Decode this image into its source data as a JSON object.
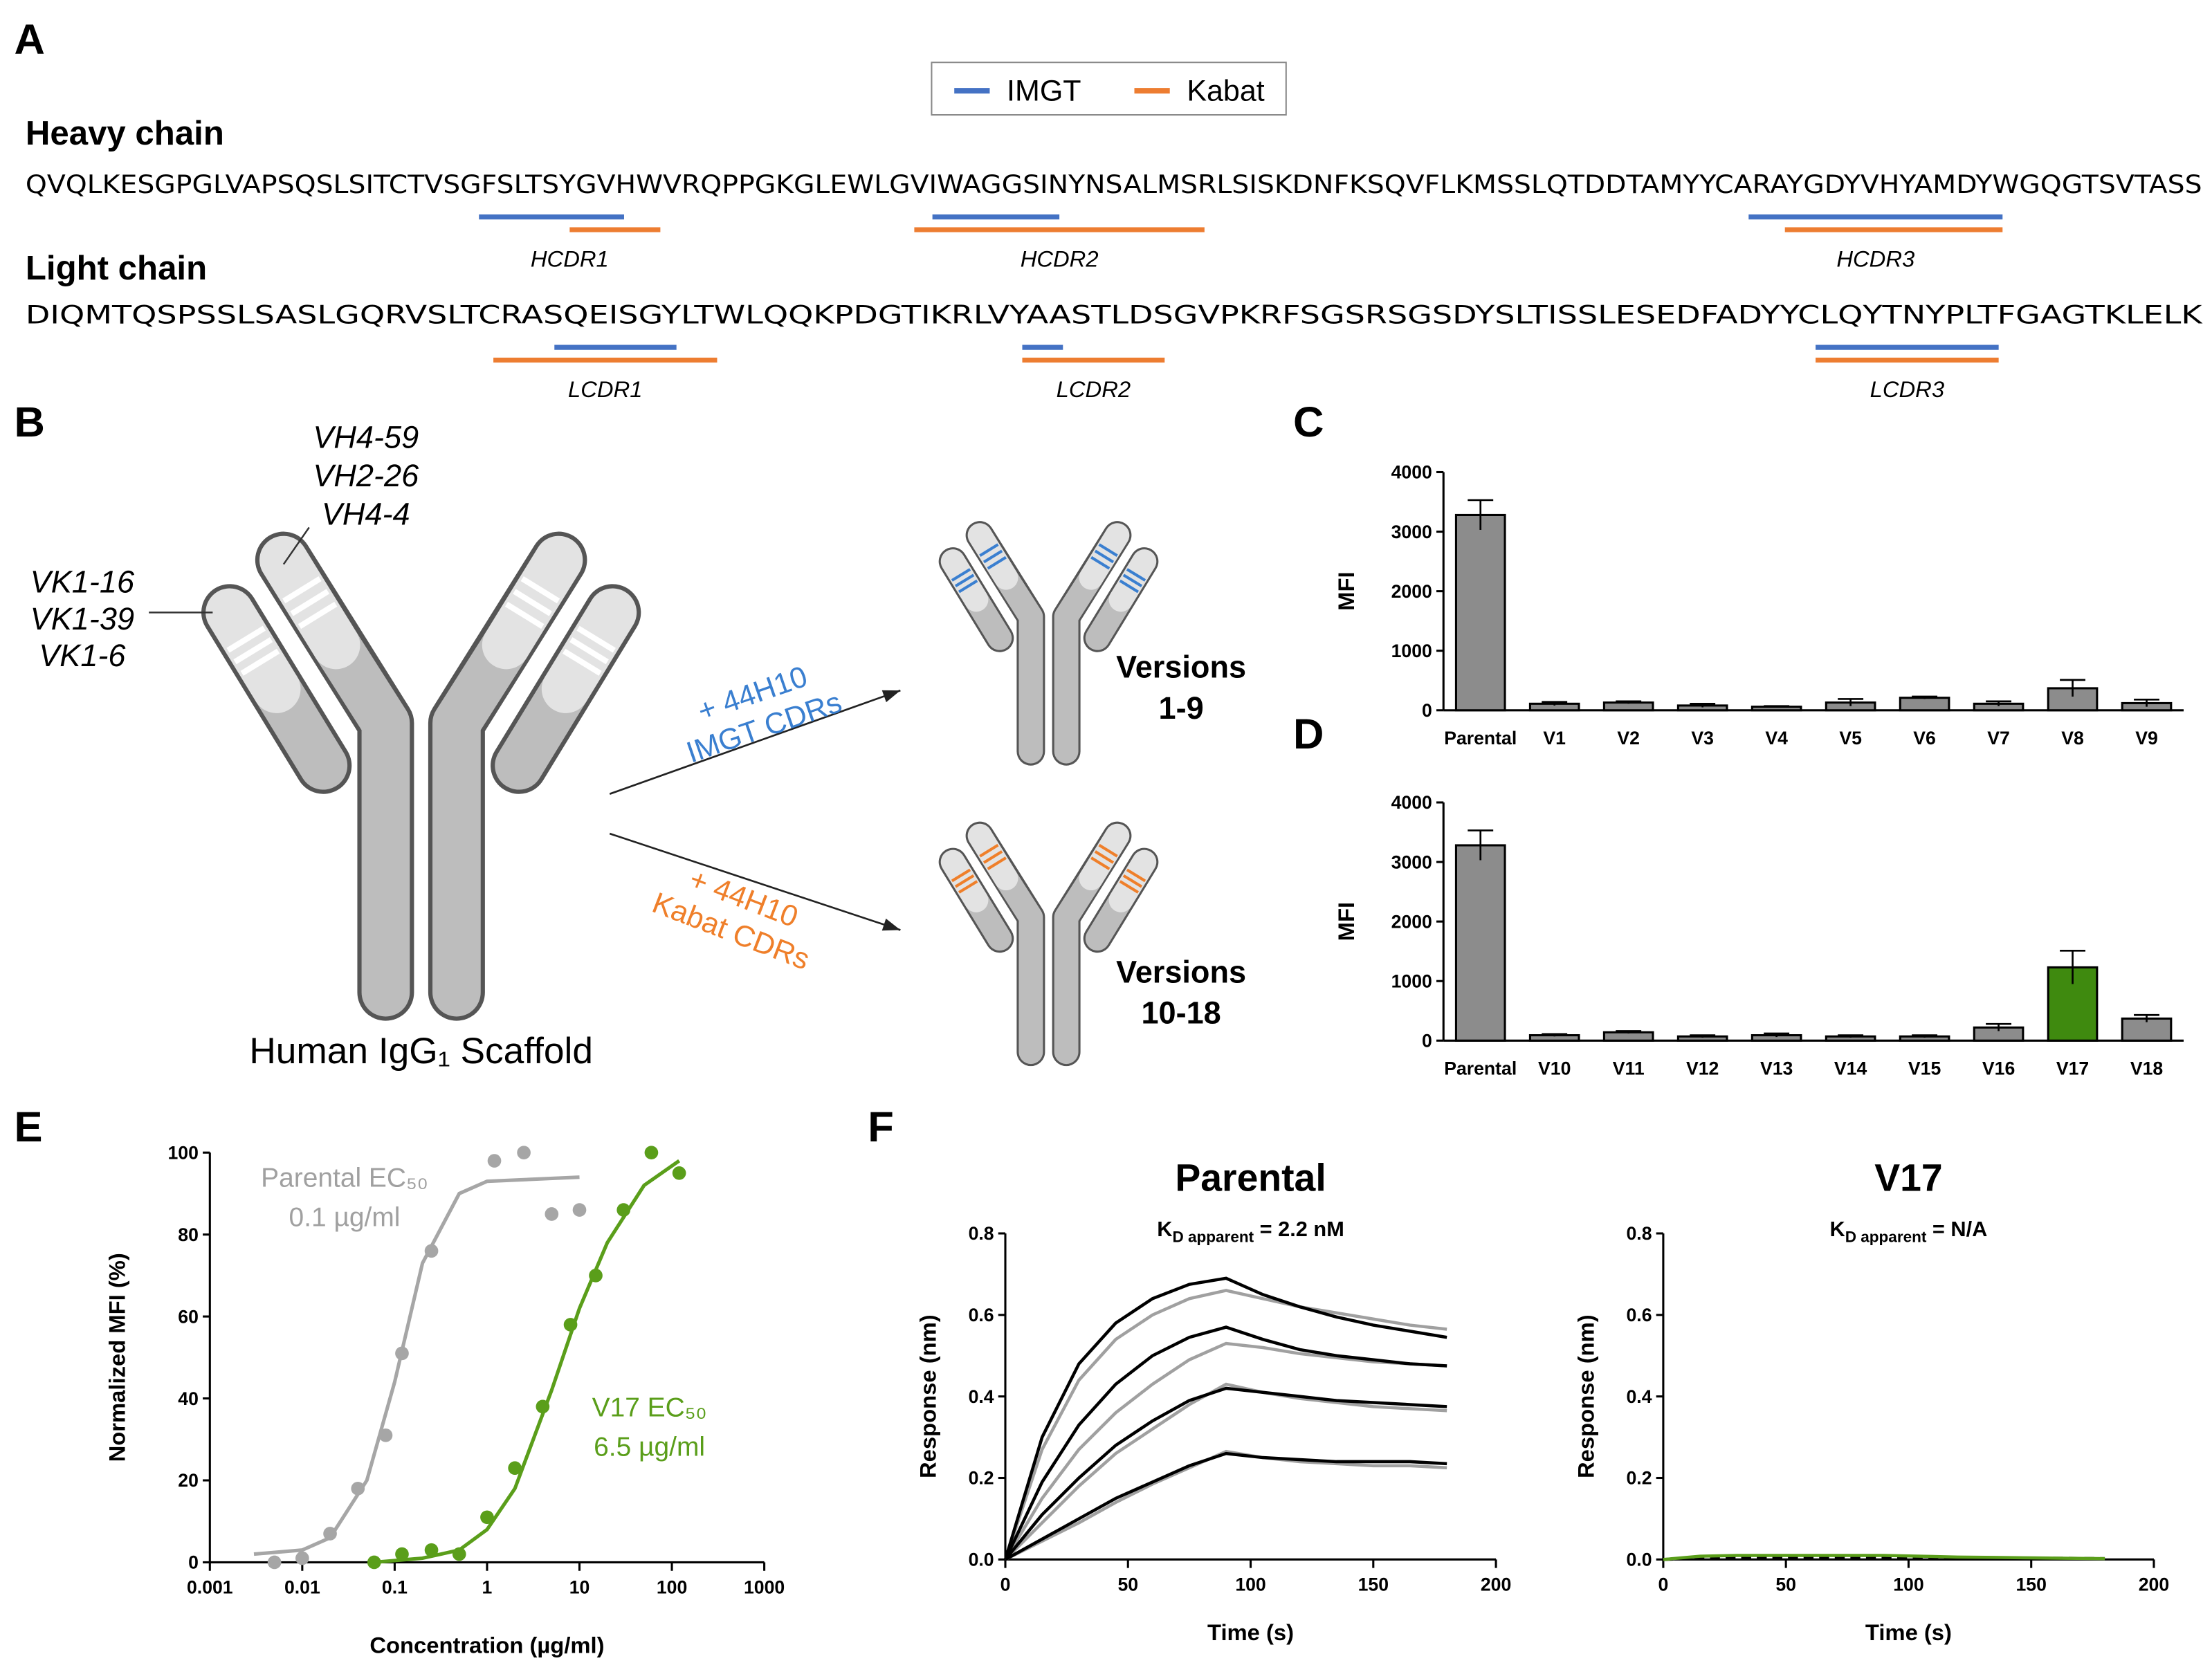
{
  "panel_labels": [
    "A",
    "B",
    "C",
    "D",
    "E",
    "F"
  ],
  "panel_a": {
    "legend": [
      {
        "name": "IMGT",
        "color": "#4472c4"
      },
      {
        "name": "Kabat",
        "color": "#ed7d31"
      }
    ],
    "heavy_title": "Heavy chain",
    "heavy_sequence": "QVQLKESGPGLVAPSQSLSITCTVSGFSLTSYGVHWVRQPPGKGLEWLGVIWAGGSINYNSALMSRLSISKDNFKSQVFLKMSSLQTDDTAMYYCARAYGDYVHYAMDYWGQGTSVTASS",
    "heavy_cdrs": [
      "HCDR1",
      "HCDR2",
      "HCDR3"
    ],
    "light_title": "Light chain",
    "light_sequence": "DIQMTQSPSSLSASLGQRVSLTCRASQEISGYLTWLQQKPDGTIKRLVYAASTLDSGVPKRFSGSRSGSDYSLTISSLESEDFADYYCLQYTNYPLTFGAGTKLELK",
    "light_cdrs": [
      "LCDR1",
      "LCDR2",
      "LCDR3"
    ]
  },
  "panel_b": {
    "heavy_germlines": [
      "VH4-59",
      "VH2-26",
      "VH4-4"
    ],
    "light_germlines": [
      "VK1-16",
      "VK1-39",
      "VK1-6"
    ],
    "scaffold": "Human IgG₁ Scaffold",
    "arrow_top": [
      "+ 44H10",
      "IMGT CDRs"
    ],
    "arrow_bottom": [
      "+ 44H10",
      "Kabat CDRs"
    ],
    "versions_top": [
      "Versions",
      "1-9"
    ],
    "versions_bottom": [
      "Versions",
      "10-18"
    ]
  },
  "chart_data": [
    {
      "type": "bar",
      "ylabel": "MFI",
      "categories": [
        "Parental",
        "V1",
        "V2",
        "V3",
        "V4",
        "V5",
        "V6",
        "V7",
        "V8",
        "V9"
      ],
      "values": [
        3280,
        110,
        130,
        80,
        60,
        130,
        210,
        110,
        370,
        120
      ],
      "errors": [
        250,
        30,
        20,
        30,
        10,
        60,
        20,
        40,
        140,
        60
      ],
      "color": "#8c8c8c",
      "ylim": [
        0,
        4000
      ],
      "yticks": [
        0,
        1000,
        2000,
        3000,
        4000
      ]
    },
    {
      "type": "bar",
      "ylabel": "MFI",
      "categories": [
        "Parental",
        "V10",
        "V11",
        "V12",
        "V13",
        "V14",
        "V15",
        "V16",
        "V17",
        "V18"
      ],
      "values": [
        3280,
        90,
        140,
        70,
        90,
        70,
        70,
        220,
        1230,
        370
      ],
      "errors": [
        250,
        20,
        20,
        20,
        30,
        20,
        20,
        60,
        280,
        60
      ],
      "colors": [
        "#8c8c8c",
        "#8c8c8c",
        "#8c8c8c",
        "#8c8c8c",
        "#8c8c8c",
        "#8c8c8c",
        "#8c8c8c",
        "#8c8c8c",
        "#3f8a0f",
        "#8c8c8c"
      ],
      "ylim": [
        0,
        4000
      ],
      "yticks": [
        0,
        1000,
        2000,
        3000,
        4000
      ]
    },
    {
      "type": "scatter",
      "xlabel": "Concentration (µg/ml)",
      "ylabel": "Normalized MFI (%)",
      "xscale": "log",
      "xlim": [
        0.001,
        1000
      ],
      "xticks": [
        0.001,
        0.01,
        0.1,
        1,
        10,
        100,
        1000
      ],
      "ylim": [
        0,
        100
      ],
      "yticks": [
        0,
        20,
        40,
        60,
        80,
        100
      ],
      "annotations": [
        {
          "lines": [
            "Parental EC₅₀",
            "0.1 µg/ml"
          ],
          "color": "#a0a0a0"
        },
        {
          "lines": [
            "V17 EC₅₀",
            "6.5 µg/ml"
          ],
          "color": "#5a9e1a"
        }
      ],
      "series": [
        {
          "color": "#a6a6a6",
          "x": [
            0.005,
            0.01,
            0.02,
            0.04,
            0.08,
            0.12,
            0.25,
            1.2,
            2.5,
            5,
            10
          ],
          "values": [
            0,
            1,
            7,
            18,
            31,
            51,
            76,
            98,
            100,
            85,
            86
          ],
          "fit_x": [
            0.003,
            0.01,
            0.02,
            0.05,
            0.1,
            0.2,
            0.5,
            1,
            10
          ],
          "fit_values": [
            2,
            3,
            6,
            20,
            44,
            73,
            90,
            93,
            94
          ]
        },
        {
          "color": "#5a9e1a",
          "x": [
            0.06,
            0.12,
            0.25,
            0.5,
            1,
            2,
            4,
            8,
            15,
            30,
            60,
            120
          ],
          "values": [
            0,
            2,
            3,
            2,
            11,
            23,
            38,
            58,
            70,
            86,
            100,
            95
          ],
          "fit_x": [
            0.06,
            0.2,
            0.5,
            1,
            2,
            5,
            10,
            20,
            50,
            120
          ],
          "fit_values": [
            0,
            1,
            3,
            8,
            18,
            42,
            62,
            78,
            92,
            98
          ]
        }
      ]
    },
    {
      "type": "line",
      "title": "Parental",
      "subtitle": {
        "symbol": "K",
        "subscript": "D apparent",
        "text": " = 2.2 nM"
      },
      "xlabel": "Time (s)",
      "ylabel": "Response (nm)",
      "xlim": [
        0,
        200
      ],
      "xticks": [
        0,
        50,
        100,
        150,
        200
      ],
      "ylim": [
        0,
        0.8
      ],
      "yticks": [
        {
          "value": 0,
          "label": "0.0"
        },
        0.2,
        0.4,
        0.6,
        0.8
      ],
      "x": [
        0,
        15,
        30,
        45,
        60,
        75,
        90,
        105,
        120,
        135,
        150,
        165,
        180
      ],
      "series": [
        {
          "color": "#a0a0a0",
          "values": [
            0,
            0.27,
            0.44,
            0.54,
            0.6,
            0.64,
            0.66,
            0.64,
            0.62,
            0.605,
            0.59,
            0.575,
            0.565
          ]
        },
        {
          "color": "#000000",
          "values": [
            0,
            0.3,
            0.48,
            0.58,
            0.64,
            0.675,
            0.69,
            0.65,
            0.62,
            0.595,
            0.575,
            0.56,
            0.545
          ]
        },
        {
          "color": "#a0a0a0",
          "values": [
            0,
            0.15,
            0.27,
            0.36,
            0.43,
            0.49,
            0.53,
            0.52,
            0.505,
            0.495,
            0.485,
            0.48,
            0.475
          ]
        },
        {
          "color": "#000000",
          "values": [
            0,
            0.19,
            0.33,
            0.43,
            0.5,
            0.545,
            0.57,
            0.54,
            0.515,
            0.5,
            0.49,
            0.48,
            0.475
          ]
        },
        {
          "color": "#a0a0a0",
          "values": [
            0,
            0.09,
            0.18,
            0.26,
            0.32,
            0.38,
            0.43,
            0.41,
            0.395,
            0.385,
            0.375,
            0.37,
            0.365
          ]
        },
        {
          "color": "#000000",
          "values": [
            0,
            0.11,
            0.2,
            0.28,
            0.34,
            0.39,
            0.42,
            0.41,
            0.4,
            0.39,
            0.385,
            0.38,
            0.375
          ]
        },
        {
          "color": "#a0a0a0",
          "values": [
            0,
            0.045,
            0.09,
            0.14,
            0.185,
            0.225,
            0.265,
            0.25,
            0.24,
            0.235,
            0.23,
            0.23,
            0.225
          ]
        },
        {
          "color": "#000000",
          "values": [
            0,
            0.05,
            0.1,
            0.15,
            0.19,
            0.23,
            0.26,
            0.25,
            0.245,
            0.24,
            0.24,
            0.24,
            0.235
          ]
        }
      ]
    },
    {
      "type": "line",
      "title": "V17",
      "subtitle": {
        "symbol": "K",
        "subscript": "D apparent",
        "text": " = N/A"
      },
      "xlabel": "Time (s)",
      "ylabel": "Response (nm)",
      "xlim": [
        0,
        200
      ],
      "xticks": [
        0,
        50,
        100,
        150,
        200
      ],
      "ylim": [
        0,
        0.8
      ],
      "yticks": [
        {
          "value": 0,
          "label": "0.0"
        },
        0.2,
        0.4,
        0.6,
        0.8
      ],
      "x": [
        0,
        15,
        30,
        45,
        60,
        75,
        90,
        105,
        120,
        135,
        150,
        165,
        180
      ],
      "series": [
        {
          "color": "#000000",
          "dashed": true,
          "values": [
            0,
            0.004,
            0.005,
            0.006,
            0.006,
            0.006,
            0.006,
            0.005,
            0.004,
            0.004,
            0.003,
            0.003,
            0.002
          ]
        },
        {
          "color": "#5a9e1a",
          "values": [
            0,
            0.008,
            0.01,
            0.01,
            0.01,
            0.01,
            0.01,
            0.008,
            0.006,
            0.005,
            0.004,
            0.003,
            0.002
          ]
        }
      ]
    }
  ]
}
